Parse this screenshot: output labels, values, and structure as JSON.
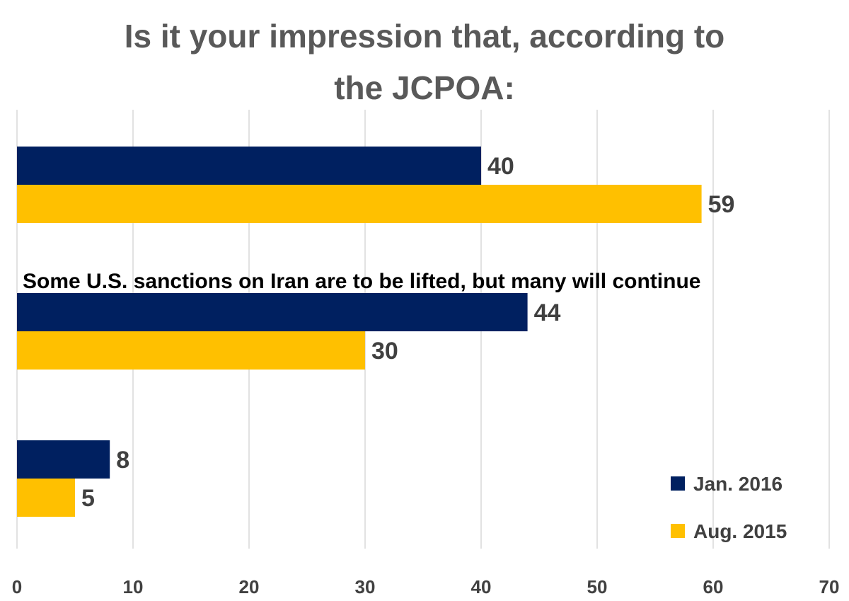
{
  "chart_data": {
    "type": "bar",
    "orientation": "horizontal",
    "title_lines": [
      "Is it your impression that, according to",
      "the JCPOA:"
    ],
    "categories": [
      "",
      "Some U.S. sanctions on Iran are to be lifted, but many will continue",
      ""
    ],
    "series": [
      {
        "name": "Jan. 2016",
        "values": [
          40,
          44,
          8
        ],
        "color": "#002060"
      },
      {
        "name": "Aug. 2015",
        "values": [
          59,
          30,
          5
        ],
        "color": "#FFC000"
      }
    ],
    "xlim": [
      0,
      70
    ],
    "x_ticks": [
      "0",
      "10",
      "20",
      "30",
      "40",
      "50",
      "60",
      "70"
    ],
    "grid": true,
    "legend_position": "bottom-right"
  }
}
